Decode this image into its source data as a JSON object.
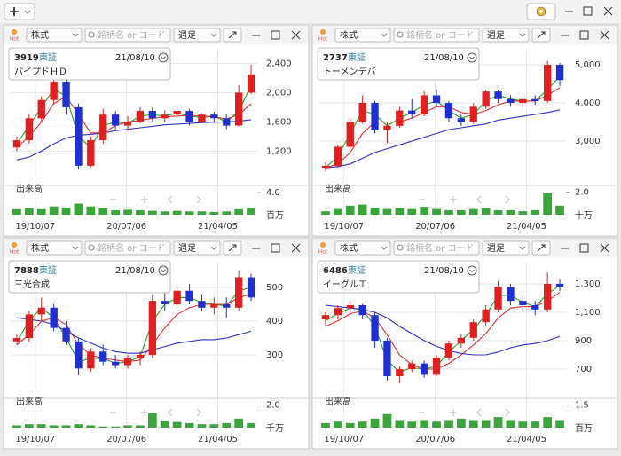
{
  "chart_data": [
    {
      "type": "candlestick",
      "market": "株式",
      "search_placeholder": "銘柄名 or コード",
      "interval": "週足",
      "hot": "Hot",
      "code": "3919",
      "exchange": "東証",
      "date": "21/08/10",
      "name": "パイプドＨＤ",
      "ylim": [
        780,
        2600
      ],
      "yticks": [
        {
          "value": 1200,
          "label": "1,200"
        },
        {
          "value": 1600,
          "label": "1,600"
        },
        {
          "value": 2000,
          "label": "2,000"
        },
        {
          "value": 2400,
          "label": "2,400"
        }
      ],
      "ohlc": [
        [
          1250,
          1400,
          1200,
          1350
        ],
        [
          1350,
          1700,
          1300,
          1650
        ],
        [
          1650,
          1950,
          1600,
          1900
        ],
        [
          1900,
          2200,
          1850,
          2150
        ],
        [
          2150,
          2200,
          1700,
          1800
        ],
        [
          1800,
          1850,
          950,
          1000
        ],
        [
          1000,
          1400,
          980,
          1350
        ],
        [
          1350,
          1780,
          1300,
          1700
        ],
        [
          1700,
          1750,
          1500,
          1550
        ],
        [
          1550,
          1680,
          1480,
          1600
        ],
        [
          1600,
          1800,
          1580,
          1750
        ],
        [
          1750,
          1800,
          1600,
          1650
        ],
        [
          1650,
          1760,
          1600,
          1700
        ],
        [
          1700,
          1800,
          1650,
          1750
        ],
        [
          1750,
          1780,
          1550,
          1600
        ],
        [
          1600,
          1720,
          1580,
          1700
        ],
        [
          1700,
          1740,
          1600,
          1650
        ],
        [
          1650,
          1700,
          1500,
          1550
        ],
        [
          1550,
          2100,
          1540,
          2000
        ],
        [
          2000,
          2380,
          1980,
          2250
        ]
      ],
      "up_color": "#e02020",
      "down_color": "#2030d0",
      "ma": [
        {
          "color": "#22a022",
          "values": [
            1300,
            1550,
            1800,
            2050,
            1950,
            1400,
            1250,
            1550,
            1600,
            1580,
            1680,
            1700,
            1680,
            1720,
            1680,
            1660,
            1680,
            1600,
            1750,
            2100
          ]
        },
        {
          "color": "#e03030",
          "values": [
            1250,
            1400,
            1600,
            1850,
            1950,
            1700,
            1450,
            1450,
            1550,
            1600,
            1620,
            1650,
            1670,
            1680,
            1690,
            1680,
            1670,
            1640,
            1700,
            1850
          ]
        },
        {
          "color": "#3030c0",
          "values": [
            1080,
            1120,
            1200,
            1300,
            1380,
            1420,
            1430,
            1450,
            1480,
            1500,
            1520,
            1540,
            1560,
            1570,
            1580,
            1590,
            1595,
            1600,
            1610,
            1630
          ]
        }
      ],
      "volume_title": "出来高",
      "volume": [
        1.0,
        1.2,
        1.0,
        1.5,
        1.3,
        2.0,
        1.5,
        1.2,
        0.8,
        0.9,
        0.8,
        0.7,
        0.6,
        0.7,
        0.6,
        0.6,
        0.5,
        0.6,
        1.0,
        1.3
      ],
      "volume_color": "#3aa53a",
      "vol_ylim": [
        0,
        4.5
      ],
      "vol_yticks": [
        {
          "value": 4,
          "label": "4.0"
        }
      ],
      "vol_unit": "百万",
      "xtick_labels": [
        "19/10/07",
        "20/07/06",
        "21/04/05"
      ]
    },
    {
      "type": "candlestick",
      "market": "株式",
      "search_placeholder": "銘柄名 or コード",
      "interval": "週足",
      "hot": "Hot",
      "code": "2737",
      "exchange": "東証",
      "date": "21/08/10",
      "name": "トーメンデバ",
      "ylim": [
        1930,
        5420
      ],
      "yticks": [
        {
          "value": 3000,
          "label": "3,000"
        },
        {
          "value": 4000,
          "label": "4,000"
        },
        {
          "value": 5000,
          "label": "5,000"
        }
      ],
      "ohlc": [
        [
          2300,
          2450,
          2200,
          2350
        ],
        [
          2350,
          2900,
          2300,
          2850
        ],
        [
          2850,
          3600,
          2800,
          3500
        ],
        [
          3500,
          4200,
          3450,
          4000
        ],
        [
          4000,
          4050,
          3200,
          3300
        ],
        [
          3300,
          3500,
          2950,
          3400
        ],
        [
          3400,
          3900,
          3350,
          3800
        ],
        [
          3800,
          4100,
          3600,
          3700
        ],
        [
          3700,
          4300,
          3650,
          4200
        ],
        [
          4200,
          4350,
          3900,
          4000
        ],
        [
          4000,
          4050,
          3500,
          3600
        ],
        [
          3600,
          3700,
          3400,
          3500
        ],
        [
          3500,
          4000,
          3450,
          3900
        ],
        [
          3900,
          4350,
          3850,
          4300
        ],
        [
          4300,
          4350,
          4000,
          4100
        ],
        [
          4100,
          4200,
          3900,
          4000
        ],
        [
          4000,
          4150,
          3900,
          4100
        ],
        [
          4100,
          4200,
          3950,
          4050
        ],
        [
          4050,
          5100,
          4000,
          5000
        ],
        [
          5000,
          5050,
          4450,
          4600
        ]
      ],
      "up_color": "#e02020",
      "down_color": "#2030d0",
      "ma": [
        {
          "color": "#22a022",
          "values": [
            2300,
            2600,
            3200,
            3800,
            3700,
            3400,
            3600,
            3750,
            3950,
            4050,
            3800,
            3600,
            3700,
            4050,
            4200,
            4100,
            4050,
            4050,
            4350,
            4700
          ]
        },
        {
          "color": "#e03030",
          "values": [
            2300,
            2400,
            2700,
            3200,
            3500,
            3500,
            3500,
            3600,
            3750,
            3900,
            3900,
            3750,
            3700,
            3800,
            3950,
            4050,
            4050,
            4050,
            4200,
            4400
          ]
        },
        {
          "color": "#3030c0",
          "values": [
            2300,
            2330,
            2400,
            2550,
            2700,
            2800,
            2900,
            3000,
            3100,
            3200,
            3300,
            3350,
            3400,
            3450,
            3550,
            3600,
            3650,
            3700,
            3750,
            3820
          ]
        }
      ],
      "volume_title": "出来高",
      "volume": [
        0.3,
        0.5,
        0.8,
        0.9,
        0.6,
        0.5,
        0.6,
        0.5,
        0.7,
        0.5,
        0.4,
        0.4,
        0.5,
        0.6,
        0.4,
        0.4,
        0.3,
        0.4,
        1.9,
        0.8
      ],
      "volume_color": "#3aa53a",
      "vol_ylim": [
        0,
        2.2
      ],
      "vol_yticks": [
        {
          "value": 2,
          "label": "2.0"
        }
      ],
      "vol_unit": "十万",
      "xtick_labels": [
        "19/10/07",
        "20/07/06",
        "21/04/05"
      ]
    },
    {
      "type": "candlestick",
      "market": "株式",
      "search_placeholder": "銘柄名 or コード",
      "interval": "週足",
      "hot": "Hot",
      "code": "7888",
      "exchange": "東証",
      "date": "21/08/10",
      "name": "三光合成",
      "ylim": [
        182,
        576
      ],
      "yticks": [
        300,
        400,
        500
      ],
      "ohlc": [
        [
          340,
          360,
          330,
          350
        ],
        [
          350,
          430,
          340,
          420
        ],
        [
          420,
          470,
          400,
          440
        ],
        [
          440,
          450,
          370,
          380
        ],
        [
          380,
          400,
          330,
          340
        ],
        [
          340,
          350,
          240,
          260
        ],
        [
          260,
          320,
          250,
          310
        ],
        [
          310,
          330,
          270,
          280
        ],
        [
          280,
          300,
          260,
          270
        ],
        [
          270,
          300,
          260,
          290
        ],
        [
          290,
          310,
          270,
          300
        ],
        [
          300,
          480,
          290,
          460
        ],
        [
          460,
          500,
          430,
          450
        ],
        [
          450,
          500,
          440,
          490
        ],
        [
          490,
          510,
          450,
          460
        ],
        [
          460,
          480,
          430,
          440
        ],
        [
          440,
          470,
          420,
          450
        ],
        [
          450,
          470,
          410,
          440
        ],
        [
          440,
          550,
          430,
          530
        ],
        [
          530,
          540,
          460,
          470
        ]
      ],
      "up_color": "#e02020",
      "down_color": "#2030d0",
      "ma": [
        {
          "color": "#22a022",
          "values": [
            340,
            400,
            440,
            410,
            350,
            280,
            290,
            290,
            275,
            280,
            295,
            400,
            450,
            470,
            470,
            455,
            450,
            445,
            490,
            500
          ]
        },
        {
          "color": "#e03030",
          "values": [
            330,
            360,
            400,
            410,
            390,
            330,
            300,
            290,
            285,
            280,
            285,
            330,
            380,
            420,
            440,
            450,
            450,
            450,
            470,
            480
          ]
        },
        {
          "color": "#3030c0",
          "values": [
            410,
            405,
            400,
            390,
            370,
            350,
            335,
            320,
            310,
            305,
            305,
            315,
            325,
            335,
            340,
            345,
            345,
            350,
            360,
            370
          ]
        }
      ],
      "volume_title": "出来高",
      "volume": [
        0.2,
        0.3,
        0.3,
        0.2,
        0.2,
        0.3,
        0.2,
        0.1,
        0.1,
        0.2,
        0.2,
        1.3,
        0.6,
        0.5,
        0.4,
        0.3,
        0.3,
        0.4,
        0.8,
        0.4
      ],
      "volume_color": "#3aa53a",
      "vol_ylim": [
        0,
        2.2
      ],
      "vol_yticks": [
        {
          "value": 2,
          "label": "2.0"
        }
      ],
      "vol_unit": "千万",
      "xtick_labels": [
        "19/10/07",
        "20/07/06",
        "21/04/05"
      ]
    },
    {
      "type": "candlestick",
      "market": "株式",
      "search_placeholder": "銘柄名 or コード",
      "interval": "週足",
      "hot": "Hot",
      "code": "6486",
      "exchange": "東証",
      "date": "21/08/10",
      "name": "イーグル工",
      "ylim": [
        519,
        1456
      ],
      "yticks": [
        700,
        900,
        {
          "value": 1100,
          "label": "1,100"
        },
        {
          "value": 1300,
          "label": "1,300"
        }
      ],
      "ohlc": [
        [
          1050,
          1100,
          1000,
          1080
        ],
        [
          1080,
          1150,
          1050,
          1130
        ],
        [
          1130,
          1180,
          1100,
          1150
        ],
        [
          1150,
          1160,
          1050,
          1080
        ],
        [
          1080,
          1100,
          850,
          900
        ],
        [
          900,
          920,
          620,
          650
        ],
        [
          650,
          720,
          600,
          700
        ],
        [
          700,
          760,
          680,
          740
        ],
        [
          740,
          760,
          640,
          660
        ],
        [
          660,
          800,
          650,
          780
        ],
        [
          780,
          900,
          760,
          880
        ],
        [
          880,
          950,
          850,
          920
        ],
        [
          920,
          1050,
          900,
          1030
        ],
        [
          1030,
          1150,
          1000,
          1120
        ],
        [
          1120,
          1320,
          1100,
          1280
        ],
        [
          1280,
          1300,
          1150,
          1180
        ],
        [
          1180,
          1220,
          1100,
          1150
        ],
        [
          1150,
          1180,
          1080,
          1120
        ],
        [
          1120,
          1380,
          1100,
          1300
        ],
        [
          1300,
          1330,
          1250,
          1280
        ]
      ],
      "up_color": "#e02020",
      "down_color": "#2030d0",
      "ma": [
        {
          "color": "#22a022",
          "values": [
            1040,
            1090,
            1130,
            1120,
            1000,
            760,
            680,
            710,
            700,
            720,
            820,
            900,
            980,
            1080,
            1220,
            1220,
            1170,
            1140,
            1230,
            1290
          ]
        },
        {
          "color": "#e03030",
          "values": [
            1000,
            1040,
            1090,
            1110,
            1060,
            940,
            800,
            730,
            700,
            700,
            740,
            800,
            870,
            950,
            1060,
            1130,
            1140,
            1140,
            1180,
            1240
          ]
        },
        {
          "color": "#3030c0",
          "values": [
            1150,
            1140,
            1130,
            1120,
            1100,
            1060,
            1000,
            950,
            900,
            860,
            830,
            810,
            800,
            800,
            820,
            850,
            870,
            880,
            900,
            930
          ]
        }
      ],
      "volume_title": "出来高",
      "volume": [
        0.3,
        0.4,
        0.3,
        0.4,
        0.6,
        0.9,
        0.5,
        0.4,
        0.5,
        0.4,
        0.5,
        0.6,
        0.5,
        0.5,
        0.7,
        0.5,
        0.4,
        0.4,
        0.7,
        0.5
      ],
      "volume_color": "#3aa53a",
      "vol_ylim": [
        0,
        1.65
      ],
      "vol_yticks": [
        1.5
      ],
      "vol_unit": "百万",
      "xtick_labels": [
        "19/10/07",
        "20/07/06",
        "21/04/05"
      ]
    }
  ]
}
